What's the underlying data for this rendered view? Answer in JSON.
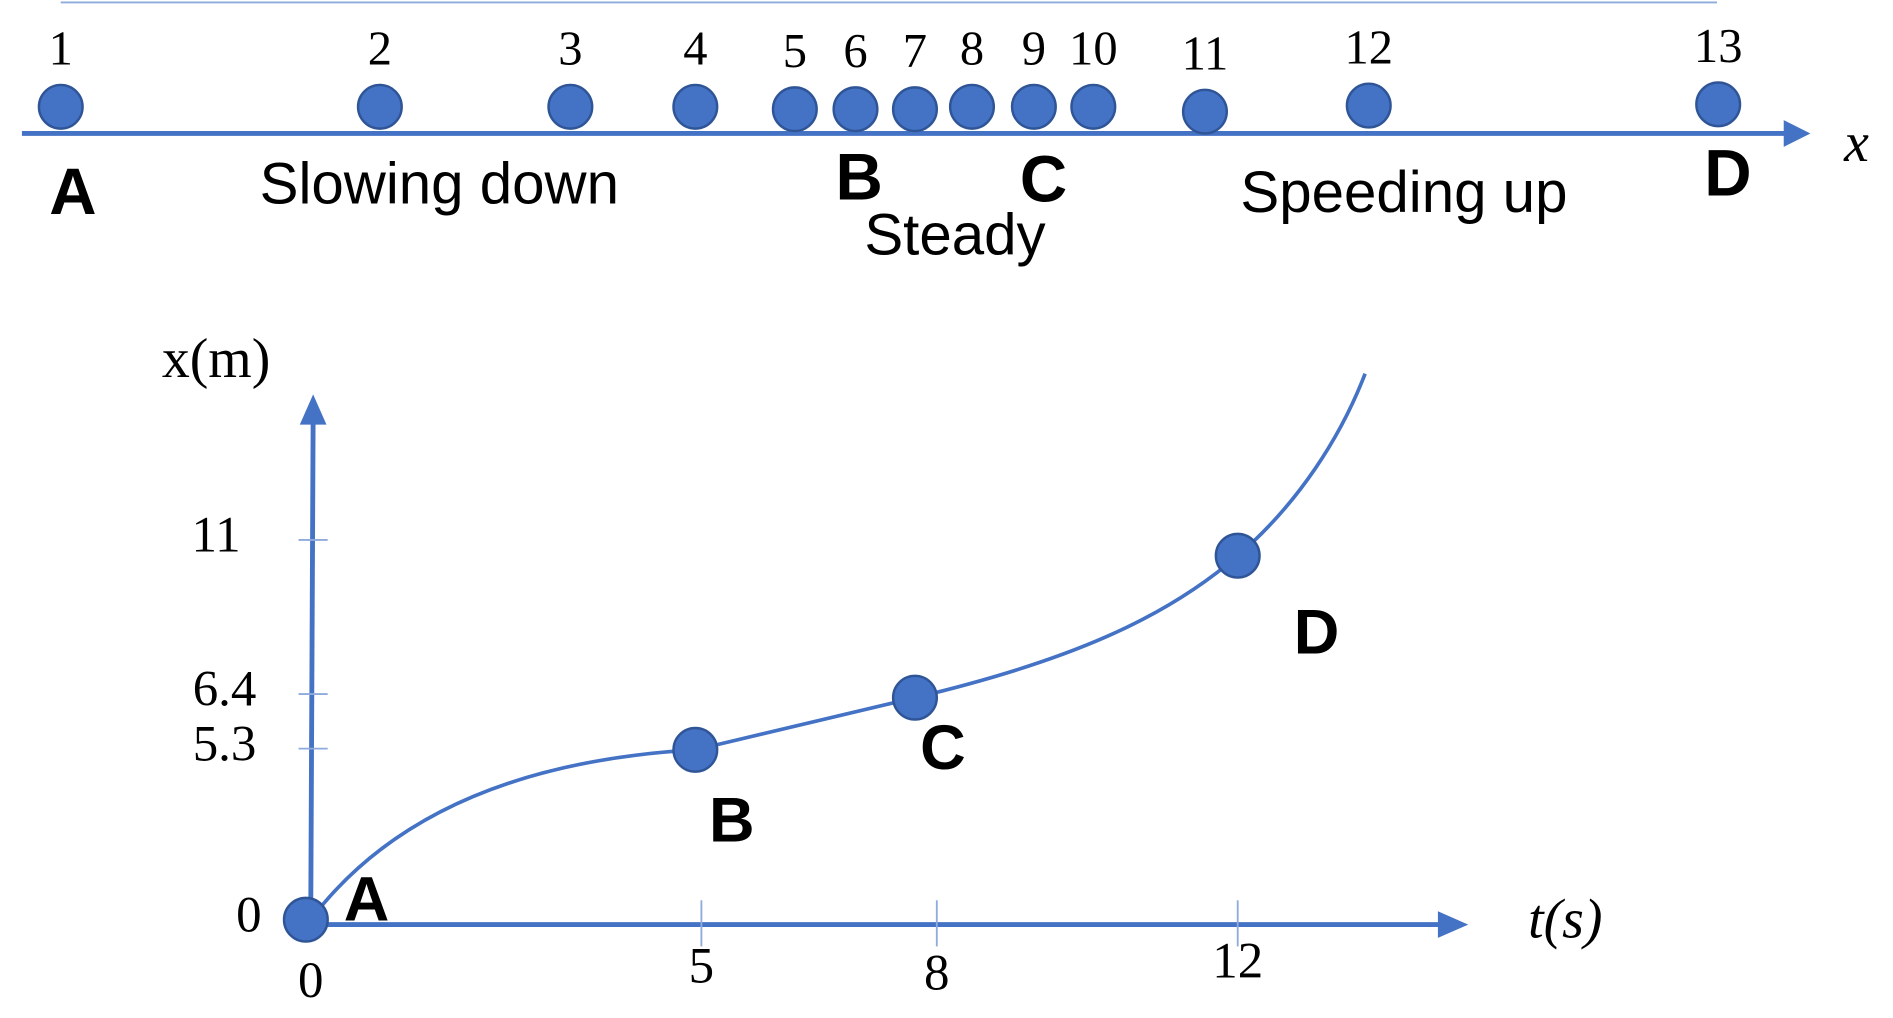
{
  "strip": {
    "dot_labels": [
      1,
      2,
      3,
      4,
      5,
      6,
      7,
      8,
      9,
      10,
      11,
      12,
      13
    ],
    "points": [
      "A",
      "B",
      "C",
      "D"
    ],
    "regions": [
      "Slowing down",
      "Steady",
      "Speeding up"
    ],
    "axis_label": "x"
  },
  "graph": {
    "y_axis_label": "x(m)",
    "x_axis_label": "t(s)",
    "x_ticks": [
      0,
      5,
      8,
      12
    ],
    "y_ticks": [
      0,
      5.3,
      6.4,
      11
    ],
    "points": [
      "A",
      "B",
      "C",
      "D"
    ]
  }
}
